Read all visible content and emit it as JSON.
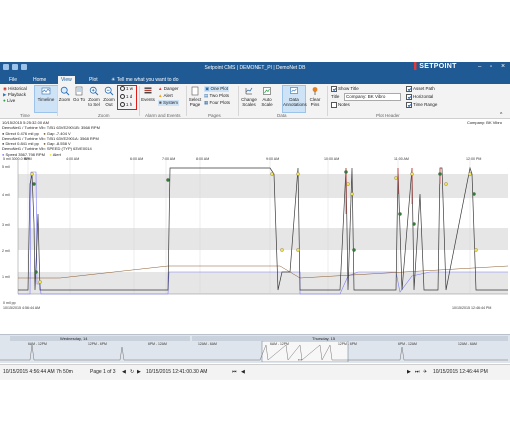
{
  "window": {
    "title": "Setpoint CMS | DEMONET_PI | DemoNet DB",
    "brand": "SETPOINT"
  },
  "tabs": [
    {
      "label": "File"
    },
    {
      "label": "Home"
    },
    {
      "label": "View"
    },
    {
      "label": "Plot"
    }
  ],
  "tell_me": "Tell me what you want to do",
  "ribbon": {
    "time_modes": [
      "Historical",
      "Playback",
      "Live"
    ],
    "timeline": "Timeline",
    "zoom_big": "Zoom",
    "goto": "Go To",
    "zoom_to_sel": "Zoom to Sel",
    "zoom_out": "Zoom Out",
    "durations": [
      "1 w",
      "1 d",
      "1 h"
    ],
    "events": "Events",
    "alarms": [
      "Danger",
      "Alert",
      "System"
    ],
    "select_page": "Select Page",
    "plot_counts": [
      "One Plot",
      "Two Plots",
      "Four Plots"
    ],
    "change_scales": "Change Scales",
    "auto_scale": "Auto Scale",
    "data_annotations": "Data Annotations",
    "clear_pins": "Clear Pins",
    "show_title": "Show Title",
    "title_label": "Title",
    "title_value": "Company: BK Vibro",
    "notes": "Notes",
    "asset_path": "Asset Path",
    "horizontal": "Horizontal",
    "time_range": "Time Range",
    "groups": {
      "time": "Time",
      "zoom": "Zoom",
      "alarm_events": "Alarm and Events",
      "pages": "Pages",
      "data": "Data",
      "plot_header": "Plot Header"
    }
  },
  "header_info": {
    "lines": [
      "10/15/2015 5:25:32.00 AM",
      "DemoNet1 / Turbine Vib: T/B1 63VE290\\1B: 3568 RPM",
      "Direct 0.476 mil pp",
      "Gap -7.404 V",
      "DemoNet1 / Turbine Vib: T/B1 63VE2901A: 3568 RPM",
      "Direct 0.841 mil pp",
      "Gap -8.558 V",
      "DemoNet1 / Turbine Vib: SPEED (TYP) 63VE0014",
      "Speed 3567.798 RPM",
      "Alert"
    ],
    "company": "Company: BK Vibro"
  },
  "chart_data": {
    "type": "line",
    "x_ticks": [
      "AM",
      "4:00 AM",
      "6:00 AM",
      "7:00 AM",
      "8:00 AM",
      "9:00 AM",
      "10:00 AM",
      "11:00 AM",
      "12:00 PM"
    ],
    "y_ticks": [
      "5 mil",
      "4 mil",
      "3 mil",
      "2 mil",
      "1 mil"
    ],
    "y_top_label": "5 mil 3000.0 RPM",
    "y_bottom_label": "0 mil pp",
    "x_bottom_left": "10/15/2015 4:56:44 AM",
    "x_bottom_right": "10/15/2015 12:46:44 PM",
    "colors": {
      "direct": "#4a4a4a",
      "speed": "#7a7aff",
      "danger": "#e03a3a",
      "gap": "#8b5a2b",
      "alert_marker": "#f1e247",
      "normal_marker": "#2e7d32"
    }
  },
  "navigator": {
    "days": [
      "Wednesday, 14",
      "Thursday, 15"
    ],
    "ticks": [
      "6AM - 12PM",
      "12PM - 6PM",
      "6PM - 12AM",
      "12AM - 6AM",
      "6AM - 12PM",
      "12PM - 6PM",
      "6PM - 12AM",
      "12AM - 6AM"
    ]
  },
  "status": {
    "range": "10/15/2015 4:56:44 AM  7h 50m",
    "page": "Page 1 of 3",
    "time": "10/15/2015 12:41:00.30 AM",
    "end": "10/15/2015 12:46:44 PM"
  }
}
